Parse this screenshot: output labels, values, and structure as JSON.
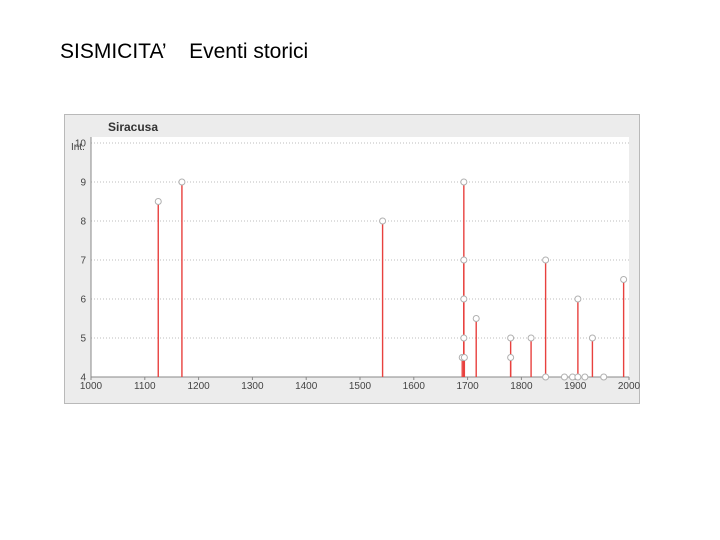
{
  "slide": {
    "title": "SISMICITA’    Eventi storici"
  },
  "chart_data": {
    "type": "bar",
    "style": "stem",
    "title": "Siracusa",
    "xlabel": "",
    "ylabel": "Int.",
    "xlim": [
      1000,
      2000
    ],
    "ylim": [
      4,
      10
    ],
    "x_ticks": [
      1000,
      1100,
      1200,
      1300,
      1400,
      1500,
      1600,
      1700,
      1800,
      1900,
      2000
    ],
    "y_ticks": [
      4,
      5,
      6,
      7,
      8,
      9,
      10
    ],
    "grid": true,
    "series_color": "#e8413e",
    "background": "#ececec",
    "plot_background": "#ffffff",
    "points": [
      {
        "x": 1125,
        "y": 8.5
      },
      {
        "x": 1169,
        "y": 9
      },
      {
        "x": 1542,
        "y": 8
      },
      {
        "x": 1690,
        "y": 4.5
      },
      {
        "x": 1693,
        "y": 9
      },
      {
        "x": 1693,
        "y": 7
      },
      {
        "x": 1693,
        "y": 6
      },
      {
        "x": 1693,
        "y": 5
      },
      {
        "x": 1694,
        "y": 4.5
      },
      {
        "x": 1716,
        "y": 5.5
      },
      {
        "x": 1780,
        "y": 5
      },
      {
        "x": 1780,
        "y": 4.5
      },
      {
        "x": 1818,
        "y": 5
      },
      {
        "x": 1845,
        "y": 7
      },
      {
        "x": 1845,
        "y": 4
      },
      {
        "x": 1880,
        "y": 4
      },
      {
        "x": 1895,
        "y": 4
      },
      {
        "x": 1905,
        "y": 6
      },
      {
        "x": 1905,
        "y": 4
      },
      {
        "x": 1918,
        "y": 4
      },
      {
        "x": 1932,
        "y": 5
      },
      {
        "x": 1953,
        "y": 4
      },
      {
        "x": 1990,
        "y": 6.5
      }
    ]
  }
}
